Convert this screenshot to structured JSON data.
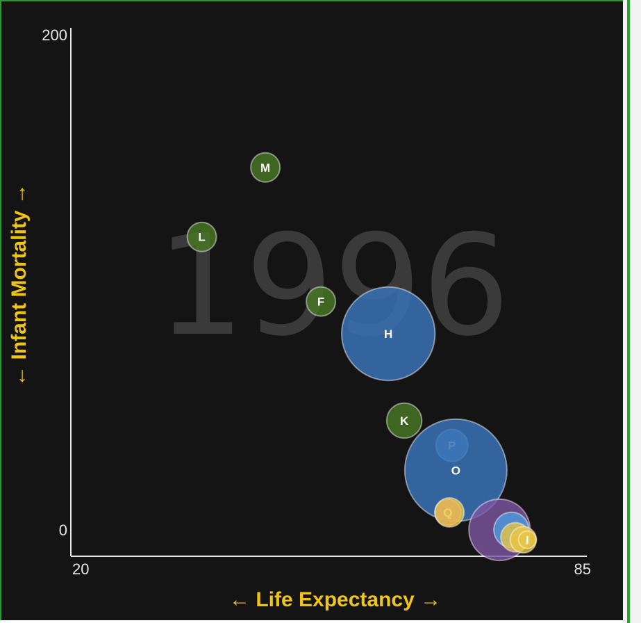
{
  "chart_data": {
    "type": "scatter",
    "xlabel": "← Life Expectancy →",
    "ylabel": "← Infant Mortality →",
    "xlim": [
      20,
      85
    ],
    "ylim": [
      0,
      200
    ],
    "xticks": [
      "20",
      "85"
    ],
    "yticks": [
      "0",
      "200"
    ],
    "year": "1996",
    "colors": {
      "green": "#4a7a24",
      "blue": "#3a72b5",
      "lightblue": "#4d9de0",
      "pink": "#d96bb8",
      "purple": "#7e55a3",
      "yellow": "#e8c542",
      "axis": "#e6e6e6",
      "label": "#f0c419"
    },
    "points": [
      {
        "label": "M",
        "x": 44.5,
        "y": 146,
        "size": 1.0,
        "color": "green"
      },
      {
        "label": "L",
        "x": 36.5,
        "y": 118,
        "size": 1.0,
        "color": "green"
      },
      {
        "label": "F",
        "x": 51.5,
        "y": 92,
        "size": 1.0,
        "color": "green"
      },
      {
        "label": "H",
        "x": 60.0,
        "y": 79,
        "size": 3.2,
        "color": "blue"
      },
      {
        "label": "K",
        "x": 62.0,
        "y": 44,
        "size": 1.2,
        "color": "green"
      },
      {
        "label": "P",
        "x": 68.0,
        "y": 34,
        "size": 1.1,
        "color": "lightblue"
      },
      {
        "label": "O",
        "x": 68.5,
        "y": 24,
        "size": 3.5,
        "color": "blue"
      },
      {
        "label": "Q",
        "x": 67.5,
        "y": 7,
        "size": 0.9,
        "color": "pink"
      },
      {
        "label": "",
        "x": 67.7,
        "y": 7,
        "size": 1.0,
        "color": "yellow"
      },
      {
        "label": "",
        "x": 74.0,
        "y": 0,
        "size": 2.1,
        "color": "purple"
      },
      {
        "label": "",
        "x": 75.5,
        "y": 0,
        "size": 1.2,
        "color": "lightblue"
      },
      {
        "label": "",
        "x": 76.0,
        "y": -3,
        "size": 1.0,
        "color": "yellow"
      },
      {
        "label": "",
        "x": 77.0,
        "y": -4,
        "size": 0.9,
        "color": "yellow"
      },
      {
        "label": "I",
        "x": 77.5,
        "y": -4,
        "size": 0.6,
        "color": "yellow"
      }
    ]
  }
}
